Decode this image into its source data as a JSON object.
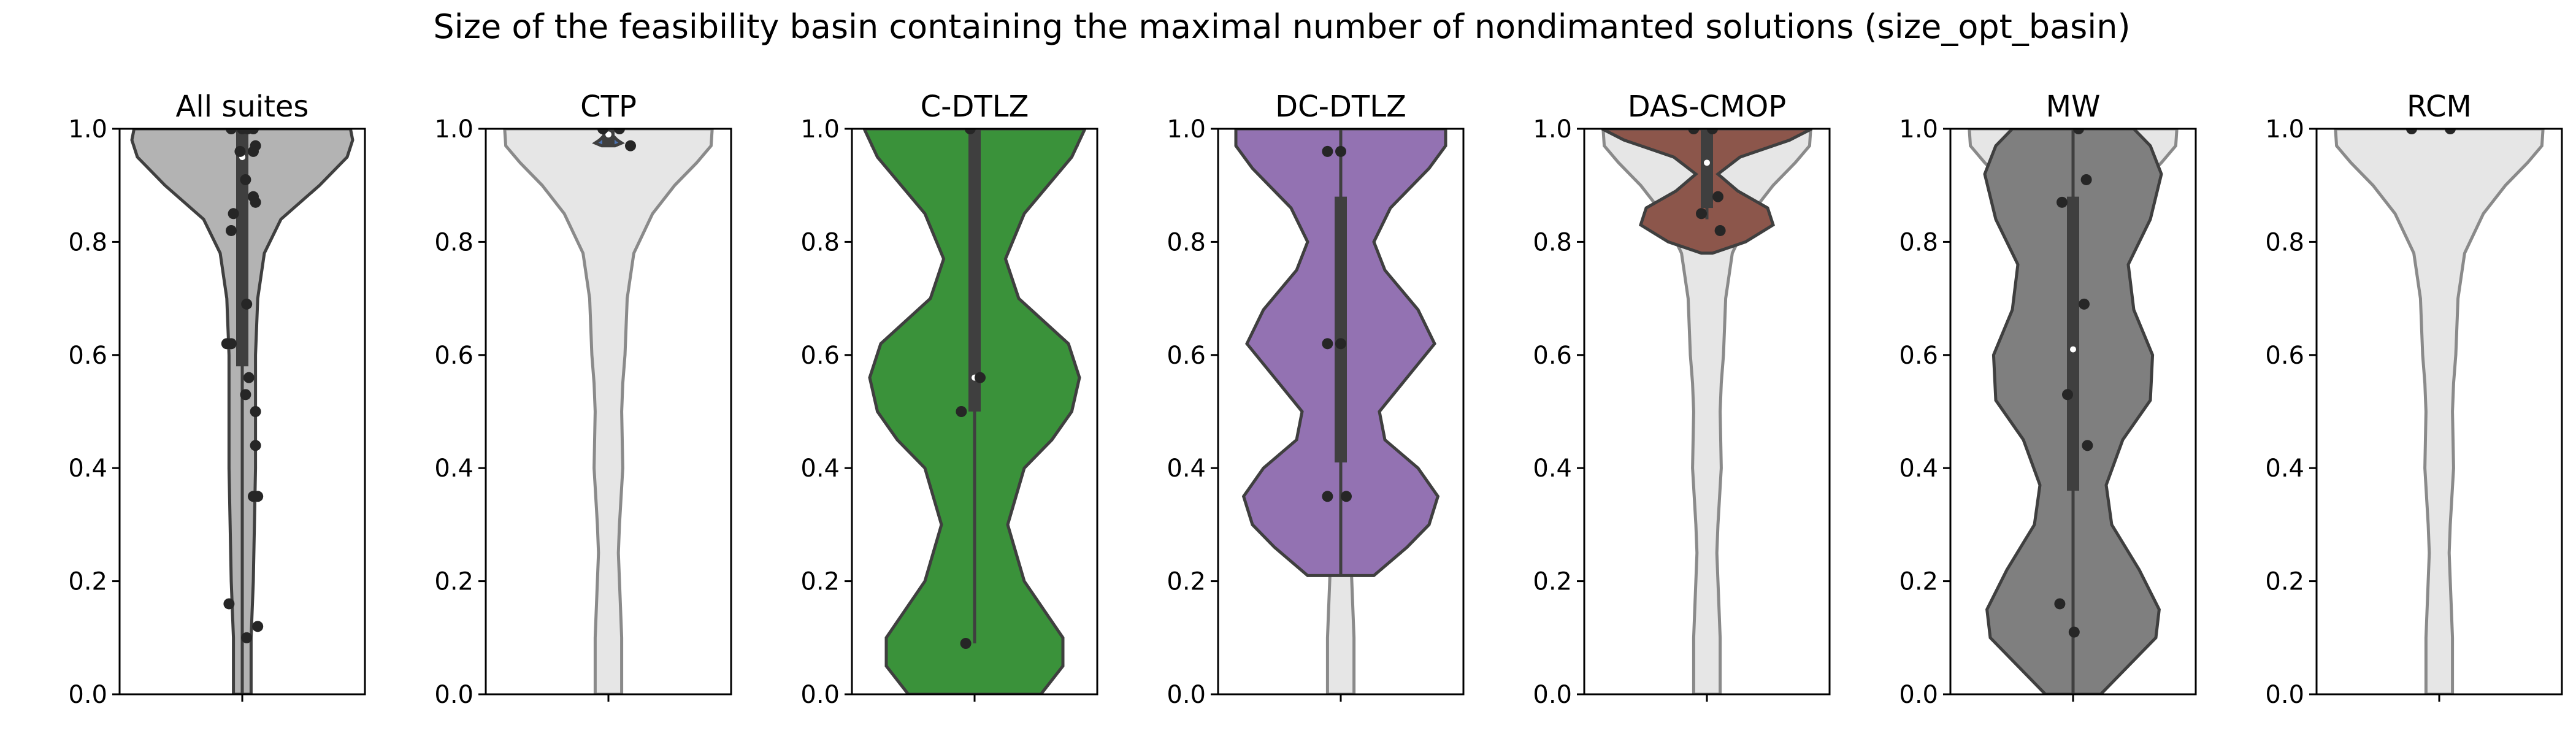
{
  "title": "Size of the feasibility basin containing the maximal number of nondimanted solutions (size_opt_basin)",
  "yticks": [
    "0.0",
    "0.2",
    "0.4",
    "0.6",
    "0.8",
    "1.0"
  ],
  "chart_data": {
    "type": "violin",
    "title": "Size of the feasibility basin containing the maximal number of nondimanted solutions (size_opt_basin)",
    "ylim": [
      0.0,
      1.0
    ],
    "yticks": [
      0.0,
      0.2,
      0.4,
      0.6,
      0.8,
      1.0
    ],
    "background_violin_color": "#e6e6e6",
    "panels": [
      {
        "title": "All suites",
        "color": "#b3b3b3",
        "background": false,
        "profile": [
          [
            0.0,
            0.08
          ],
          [
            0.1,
            0.08
          ],
          [
            0.2,
            0.1
          ],
          [
            0.3,
            0.11
          ],
          [
            0.4,
            0.12
          ],
          [
            0.5,
            0.12
          ],
          [
            0.6,
            0.12
          ],
          [
            0.7,
            0.14
          ],
          [
            0.78,
            0.2
          ],
          [
            0.84,
            0.35
          ],
          [
            0.9,
            0.7
          ],
          [
            0.95,
            0.95
          ],
          [
            0.98,
            1.0
          ],
          [
            1.0,
            0.98
          ]
        ],
        "box": [
          0.58,
          1.0
        ],
        "whisker": [
          0.0,
          1.0
        ],
        "median": 0.95,
        "points": [
          [
            0.0,
            1.0
          ],
          [
            -0.1,
            1.0
          ],
          [
            0.1,
            1.0
          ],
          [
            0.05,
            1.0
          ],
          [
            -0.02,
            0.96
          ],
          [
            0.12,
            0.97
          ],
          [
            0.1,
            0.96
          ],
          [
            0.03,
            0.91
          ],
          [
            0.1,
            0.88
          ],
          [
            0.12,
            0.87
          ],
          [
            -0.08,
            0.85
          ],
          [
            -0.1,
            0.82
          ],
          [
            0.04,
            0.69
          ],
          [
            -0.14,
            0.62
          ],
          [
            -0.1,
            0.62
          ],
          [
            0.06,
            0.56
          ],
          [
            0.03,
            0.53
          ],
          [
            0.12,
            0.5
          ],
          [
            0.12,
            0.44
          ],
          [
            0.1,
            0.35
          ],
          [
            0.14,
            0.35
          ],
          [
            -0.12,
            0.16
          ],
          [
            0.04,
            0.1
          ],
          [
            0.14,
            0.12
          ]
        ]
      },
      {
        "title": "CTP",
        "color": "#4c72b0",
        "background": true,
        "profile": [
          [
            0.97,
            0.06
          ],
          [
            0.975,
            0.12
          ],
          [
            0.98,
            0.08
          ],
          [
            0.99,
            0.03
          ],
          [
            1.0,
            0.0
          ]
        ],
        "box": [
          0.97,
          1.0
        ],
        "whisker": [
          0.97,
          1.0
        ],
        "median": 0.99,
        "points": [
          [
            -0.05,
            1.0
          ],
          [
            0.1,
            1.0
          ],
          [
            0.2,
            0.97
          ]
        ]
      },
      {
        "title": "C-DTLZ",
        "color": "#3a923a",
        "background": true,
        "profile": [
          [
            0.0,
            0.6
          ],
          [
            0.05,
            0.8
          ],
          [
            0.1,
            0.8
          ],
          [
            0.2,
            0.45
          ],
          [
            0.3,
            0.3
          ],
          [
            0.4,
            0.45
          ],
          [
            0.45,
            0.7
          ],
          [
            0.5,
            0.88
          ],
          [
            0.56,
            0.95
          ],
          [
            0.62,
            0.85
          ],
          [
            0.7,
            0.4
          ],
          [
            0.77,
            0.28
          ],
          [
            0.85,
            0.45
          ],
          [
            0.95,
            0.88
          ],
          [
            1.0,
            1.0
          ]
        ],
        "box": [
          0.5,
          1.0
        ],
        "whisker": [
          0.09,
          1.0
        ],
        "median": 0.56,
        "points": [
          [
            -0.04,
            1.0
          ],
          [
            -0.12,
            0.5
          ],
          [
            0.05,
            0.56
          ],
          [
            -0.08,
            0.09
          ]
        ]
      },
      {
        "title": "DC-DTLZ",
        "color": "#9372b2",
        "background": true,
        "profile": [
          [
            0.21,
            0.3
          ],
          [
            0.26,
            0.6
          ],
          [
            0.3,
            0.8
          ],
          [
            0.35,
            0.88
          ],
          [
            0.4,
            0.7
          ],
          [
            0.45,
            0.4
          ],
          [
            0.5,
            0.35
          ],
          [
            0.56,
            0.6
          ],
          [
            0.62,
            0.85
          ],
          [
            0.68,
            0.7
          ],
          [
            0.75,
            0.4
          ],
          [
            0.8,
            0.3
          ],
          [
            0.86,
            0.45
          ],
          [
            0.93,
            0.8
          ],
          [
            0.97,
            0.95
          ],
          [
            1.0,
            0.95
          ]
        ],
        "box": [
          0.41,
          0.88
        ],
        "whisker": [
          0.21,
          1.0
        ],
        "median": 0.62,
        "points": [
          [
            -0.12,
            0.96
          ],
          [
            0.0,
            0.96
          ],
          [
            -0.12,
            0.62
          ],
          [
            0.0,
            0.62
          ],
          [
            -0.12,
            0.35
          ],
          [
            0.05,
            0.35
          ]
        ]
      },
      {
        "title": "DAS-CMOP",
        "color": "#8c564b",
        "background": true,
        "profile": [
          [
            0.78,
            0.05
          ],
          [
            0.8,
            0.35
          ],
          [
            0.83,
            0.6
          ],
          [
            0.86,
            0.55
          ],
          [
            0.89,
            0.28
          ],
          [
            0.92,
            0.1
          ],
          [
            0.95,
            0.3
          ],
          [
            0.98,
            0.75
          ],
          [
            1.0,
            0.95
          ]
        ],
        "box": [
          0.86,
          1.0
        ],
        "whisker": [
          0.84,
          1.0
        ],
        "median": 0.94,
        "points": [
          [
            0.05,
            1.0
          ],
          [
            -0.12,
            1.0
          ],
          [
            0.1,
            0.88
          ],
          [
            -0.05,
            0.85
          ],
          [
            0.12,
            0.82
          ]
        ]
      },
      {
        "title": "MW",
        "color": "#7f7f7f",
        "background": true,
        "profile": [
          [
            0.0,
            0.25
          ],
          [
            0.05,
            0.5
          ],
          [
            0.1,
            0.75
          ],
          [
            0.15,
            0.78
          ],
          [
            0.22,
            0.6
          ],
          [
            0.3,
            0.35
          ],
          [
            0.37,
            0.3
          ],
          [
            0.45,
            0.45
          ],
          [
            0.52,
            0.7
          ],
          [
            0.6,
            0.72
          ],
          [
            0.68,
            0.55
          ],
          [
            0.76,
            0.5
          ],
          [
            0.84,
            0.7
          ],
          [
            0.92,
            0.8
          ],
          [
            0.97,
            0.7
          ],
          [
            1.0,
            0.55
          ]
        ],
        "box": [
          0.36,
          0.88
        ],
        "whisker": [
          0.0,
          1.0
        ],
        "median": 0.61,
        "points": [
          [
            0.05,
            1.0
          ],
          [
            -0.1,
            0.87
          ],
          [
            0.12,
            0.91
          ],
          [
            0.1,
            0.69
          ],
          [
            -0.05,
            0.53
          ],
          [
            0.13,
            0.44
          ],
          [
            -0.12,
            0.16
          ],
          [
            0.01,
            0.11
          ]
        ]
      },
      {
        "title": "RCM",
        "color": "#e6e6e6",
        "background": true,
        "profile": [],
        "box": null,
        "whisker": null,
        "median": null,
        "points": [
          [
            -0.25,
            1.0
          ],
          [
            0.1,
            1.0
          ]
        ]
      }
    ],
    "background_profile": [
      [
        0.0,
        0.12
      ],
      [
        0.1,
        0.12
      ],
      [
        0.2,
        0.1
      ],
      [
        0.25,
        0.09
      ],
      [
        0.3,
        0.1
      ],
      [
        0.4,
        0.13
      ],
      [
        0.5,
        0.12
      ],
      [
        0.55,
        0.13
      ],
      [
        0.6,
        0.15
      ],
      [
        0.7,
        0.17
      ],
      [
        0.78,
        0.23
      ],
      [
        0.85,
        0.4
      ],
      [
        0.9,
        0.6
      ],
      [
        0.94,
        0.8
      ],
      [
        0.97,
        0.93
      ],
      [
        1.0,
        0.94
      ]
    ]
  }
}
